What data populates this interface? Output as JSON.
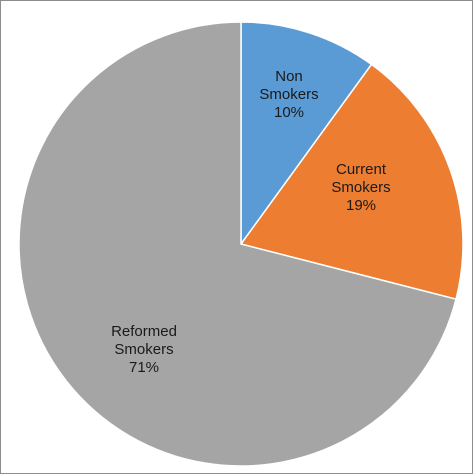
{
  "chart_data": {
    "type": "pie",
    "title": "",
    "legend": "none",
    "start_angle_deg": 0,
    "direction": "clockwise",
    "slices": [
      {
        "label_lines": [
          "Non",
          "Smokers"
        ],
        "percent_label": "10%",
        "value": 10,
        "color": "#5b9bd5"
      },
      {
        "label_lines": [
          "Current",
          "Smokers"
        ],
        "percent_label": "19%",
        "value": 19,
        "color": "#ed7d31"
      },
      {
        "label_lines": [
          "Reformed",
          "Smokers"
        ],
        "percent_label": "71%",
        "value": 71,
        "color": "#a5a5a5"
      }
    ]
  }
}
